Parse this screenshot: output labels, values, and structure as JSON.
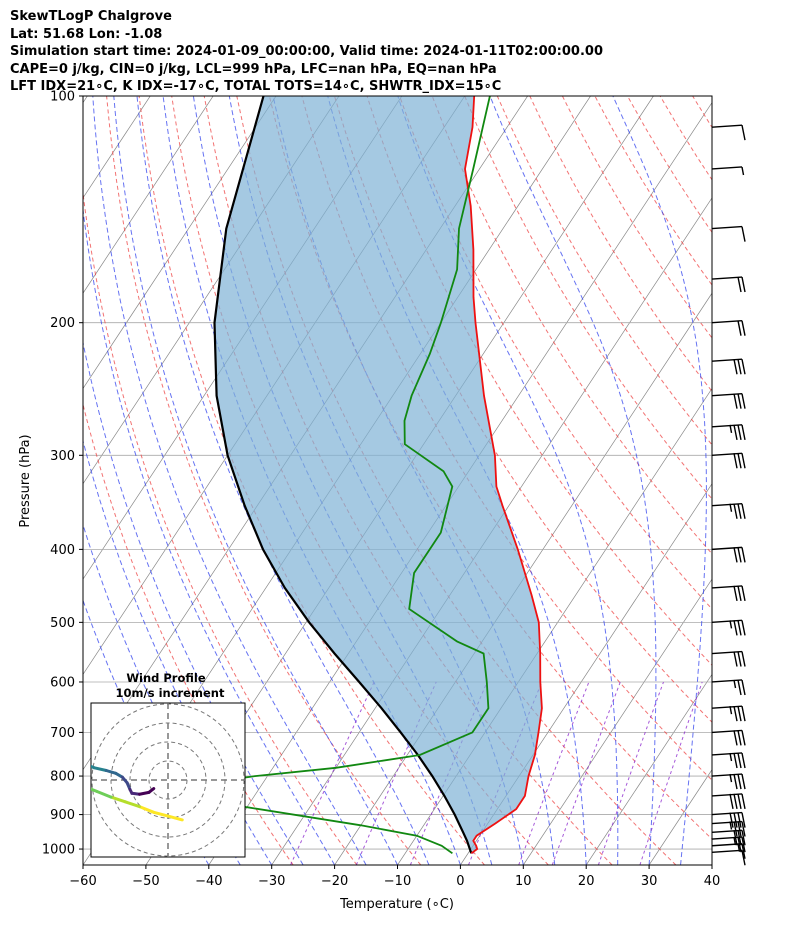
{
  "header": {
    "line1": "SkewTLogP Chalgrove",
    "line2": "Lat: 51.68   Lon: -1.08",
    "line3": "Simulation start time: 2024-01-09_00:00:00, Valid time: 2024-01-11T02:00:00.00",
    "line4": "CAPE=0 j/kg, CIN=0 j/kg, LCL=999 hPa, LFC=nan hPa, EQ=nan hPa",
    "line5": "LFT IDX=21$^\\circ$C, K IDX=-17$^\\circ$C, TOTAL TOTS=14$^\\circ$C, SHWTR_IDX=15$^\\circ$C"
  },
  "header_display": {
    "line5": "LFT IDX=21∘C, K IDX=-17∘C, TOTAL TOTS=14∘C, SHWTR_IDX=15∘C"
  },
  "chart_data": {
    "type": "line",
    "xlabel": "Temperature (∘C)",
    "ylabel": "Pressure (hPa)",
    "xlim": [
      -60,
      40
    ],
    "ylim": [
      1050,
      100
    ],
    "y_scale": "log",
    "skew": true,
    "grid": true,
    "x_ticks": [
      -60,
      -50,
      -40,
      -30,
      -20,
      -10,
      0,
      10,
      20,
      30,
      40
    ],
    "x_tick_labels": [
      "−60",
      "−50",
      "−40",
      "−30",
      "−20",
      "−10",
      "0",
      "10",
      "20",
      "30",
      "40"
    ],
    "y_ticks": [
      100,
      200,
      300,
      400,
      500,
      600,
      700,
      800,
      900,
      1000
    ],
    "series": [
      {
        "role": "temperature",
        "color": "#ee1111",
        "points": [
          [
            1013,
            0.5
          ],
          [
            1000,
            1
          ],
          [
            990,
            0.5
          ],
          [
            975,
            -0.5
          ],
          [
            960,
            -0.5
          ],
          [
            925,
            1.2
          ],
          [
            885,
            3.0
          ],
          [
            850,
            3.0
          ],
          [
            800,
            1.5
          ],
          [
            750,
            0.3
          ],
          [
            700,
            -1.5
          ],
          [
            650,
            -3.5
          ],
          [
            600,
            -6.5
          ],
          [
            550,
            -9.5
          ],
          [
            500,
            -13
          ],
          [
            460,
            -17
          ],
          [
            400,
            -24
          ],
          [
            350,
            -31
          ],
          [
            330,
            -34
          ],
          [
            300,
            -37.5
          ],
          [
            250,
            -45.5
          ],
          [
            200,
            -54.5
          ],
          [
            185,
            -57.5
          ],
          [
            160,
            -62.5
          ],
          [
            140,
            -67.5
          ],
          [
            125,
            -72.3
          ],
          [
            110,
            -75.5
          ],
          [
            100,
            -78.5
          ]
        ]
      },
      {
        "role": "dewpoint",
        "color": "#118811",
        "points": [
          [
            1013,
            -2.5
          ],
          [
            990,
            -5
          ],
          [
            960,
            -10
          ],
          [
            930,
            -20
          ],
          [
            880,
            -40
          ],
          [
            850,
            -50
          ],
          [
            820,
            -50
          ],
          [
            800,
            -42
          ],
          [
            780,
            -30
          ],
          [
            750,
            -18
          ],
          [
            700,
            -12
          ],
          [
            650,
            -12
          ],
          [
            600,
            -15
          ],
          [
            550,
            -18.5
          ],
          [
            530,
            -24
          ],
          [
            480,
            -35
          ],
          [
            430,
            -38
          ],
          [
            380,
            -38
          ],
          [
            330,
            -41
          ],
          [
            315,
            -44
          ],
          [
            290,
            -53
          ],
          [
            270,
            -55.5
          ],
          [
            250,
            -57
          ],
          [
            220,
            -58.5
          ],
          [
            200,
            -60
          ],
          [
            170,
            -63
          ],
          [
            150,
            -67
          ],
          [
            125,
            -71
          ],
          [
            100,
            -76
          ]
        ]
      },
      {
        "role": "parcel",
        "color": "#000000",
        "points": [
          [
            1013,
            0.5
          ],
          [
            975,
            -1.5
          ],
          [
            950,
            -3
          ],
          [
            900,
            -6.2
          ],
          [
            850,
            -9.8
          ],
          [
            800,
            -13.8
          ],
          [
            750,
            -18.3
          ],
          [
            700,
            -23.4
          ],
          [
            650,
            -29
          ],
          [
            600,
            -35.3
          ],
          [
            550,
            -42.2
          ],
          [
            500,
            -49.5
          ],
          [
            450,
            -57
          ],
          [
            400,
            -64.5
          ],
          [
            350,
            -72
          ],
          [
            300,
            -80
          ],
          [
            250,
            -88
          ],
          [
            200,
            -96
          ],
          [
            150,
            -104
          ],
          [
            100,
            -112
          ]
        ]
      }
    ],
    "wind_barbs": [
      {
        "p": 1010,
        "speed_kt": 10
      },
      {
        "p": 990,
        "speed_kt": 15
      },
      {
        "p": 970,
        "speed_kt": 25
      },
      {
        "p": 950,
        "speed_kt": 30
      },
      {
        "p": 925,
        "speed_kt": 35
      },
      {
        "p": 900,
        "speed_kt": 40
      },
      {
        "p": 850,
        "speed_kt": 40
      },
      {
        "p": 800,
        "speed_kt": 35
      },
      {
        "p": 750,
        "speed_kt": 35
      },
      {
        "p": 700,
        "speed_kt": 30
      },
      {
        "p": 650,
        "speed_kt": 35
      },
      {
        "p": 600,
        "speed_kt": 25
      },
      {
        "p": 550,
        "speed_kt": 30
      },
      {
        "p": 500,
        "speed_kt": 35
      },
      {
        "p": 450,
        "speed_kt": 30
      },
      {
        "p": 400,
        "speed_kt": 30
      },
      {
        "p": 350,
        "speed_kt": 35
      },
      {
        "p": 300,
        "speed_kt": 30
      },
      {
        "p": 275,
        "speed_kt": 35
      },
      {
        "p": 250,
        "speed_kt": 30
      },
      {
        "p": 225,
        "speed_kt": 30
      },
      {
        "p": 200,
        "speed_kt": 20
      },
      {
        "p": 175,
        "speed_kt": 20
      },
      {
        "p": 150,
        "speed_kt": 10
      },
      {
        "p": 125,
        "speed_kt": 5
      },
      {
        "p": 110,
        "speed_kt": 10
      }
    ],
    "inset": {
      "title_line1": "Wind Profile",
      "title_line2": "10m/s increment",
      "type": "hodograph",
      "rings": 4,
      "points_uv": [
        [
          1.5,
          -4.2
        ],
        [
          0,
          -3.8
        ],
        [
          -1.5,
          -3.4
        ],
        [
          -3,
          -2.8
        ],
        [
          -4.5,
          -2.3
        ],
        [
          -6,
          -1.8
        ],
        [
          -7.5,
          -1.2
        ],
        [
          -9,
          -0.6
        ],
        [
          -10,
          0
        ],
        [
          -9.5,
          0.5
        ],
        [
          -9,
          1
        ],
        [
          -8.5,
          1.6
        ],
        [
          -7.8,
          1.3
        ],
        [
          -6.5,
          1
        ],
        [
          -5.5,
          0.7
        ],
        [
          -4.8,
          0.3
        ],
        [
          -4.3,
          -0.3
        ],
        [
          -4,
          -1
        ],
        [
          -3.8,
          -1.4
        ],
        [
          -3,
          -1.5
        ],
        [
          -2,
          -1.3
        ],
        [
          -1.5,
          -0.9
        ]
      ],
      "colormap": "viridis"
    },
    "colors": {
      "isotherms": "#888888",
      "dry_adiabats": "#ee4444",
      "moist_adiabats": "#3344ee",
      "mixing_ratio": "#8822cc",
      "cape_fill": "#7fb2d5"
    }
  }
}
